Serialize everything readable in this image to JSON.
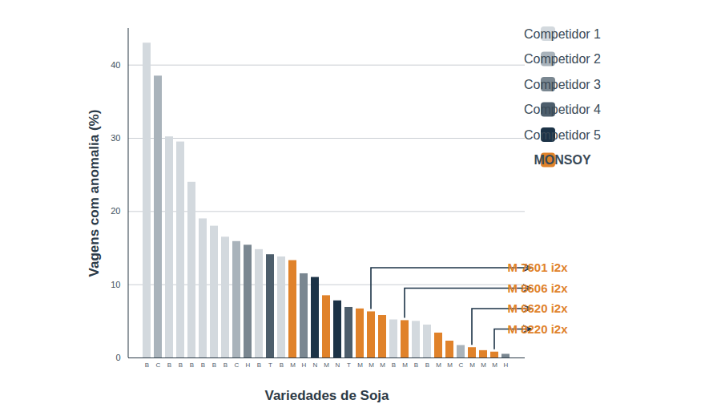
{
  "chart_data": {
    "type": "bar",
    "x_label": "Variedades de Soja",
    "y_label": "Vagens com anomalia (%)",
    "categories": [
      "B",
      "C",
      "B",
      "B",
      "B",
      "B",
      "B",
      "B",
      "C",
      "H",
      "B",
      "T",
      "B",
      "M",
      "H",
      "N",
      "M",
      "N",
      "T",
      "M",
      "M",
      "M",
      "B",
      "M",
      "B",
      "B",
      "M",
      "M",
      "C",
      "M",
      "M",
      "M",
      "H"
    ],
    "series": [
      {
        "name": "Competidor 1",
        "color": "#d3d9de",
        "values": [
          43,
          null,
          30.2,
          29.5,
          24,
          19,
          18,
          16.5,
          null,
          null,
          14.8,
          null,
          13.8,
          null,
          null,
          null,
          null,
          null,
          null,
          null,
          null,
          null,
          5.2,
          null,
          5.0,
          4.5,
          null,
          null,
          null,
          null,
          null,
          null,
          null
        ]
      },
      {
        "name": "Competidor 2",
        "color": "#a9b3bb",
        "values": [
          null,
          38.5,
          null,
          null,
          null,
          null,
          null,
          null,
          15.9,
          null,
          null,
          null,
          null,
          null,
          null,
          null,
          null,
          null,
          null,
          null,
          null,
          null,
          null,
          null,
          null,
          null,
          null,
          null,
          1.7,
          null,
          null,
          null,
          null
        ]
      },
      {
        "name": "Competidor 3",
        "color": "#7a8791",
        "values": [
          null,
          null,
          null,
          null,
          null,
          null,
          null,
          null,
          null,
          15.4,
          null,
          null,
          null,
          null,
          11.5,
          null,
          null,
          null,
          null,
          null,
          null,
          null,
          null,
          null,
          null,
          null,
          null,
          null,
          null,
          null,
          null,
          null,
          0.5
        ]
      },
      {
        "name": "Competidor 4",
        "color": "#4d5e6c",
        "values": [
          null,
          null,
          null,
          null,
          null,
          null,
          null,
          null,
          null,
          null,
          null,
          14.1,
          null,
          null,
          null,
          null,
          null,
          null,
          6.9,
          null,
          null,
          null,
          null,
          null,
          null,
          null,
          null,
          null,
          null,
          null,
          null,
          null,
          null
        ]
      },
      {
        "name": "Competidor 5",
        "color": "#1c3347",
        "values": [
          null,
          null,
          null,
          null,
          null,
          null,
          null,
          null,
          null,
          null,
          null,
          null,
          null,
          null,
          null,
          11,
          null,
          7.8,
          null,
          null,
          null,
          null,
          null,
          null,
          null,
          null,
          null,
          null,
          null,
          null,
          null,
          null,
          null
        ]
      },
      {
        "name": "MONSOY",
        "color": "#e0822a",
        "values": [
          null,
          null,
          null,
          null,
          null,
          null,
          null,
          null,
          null,
          null,
          null,
          null,
          null,
          13.3,
          null,
          null,
          8.5,
          null,
          null,
          6.7,
          6.3,
          5.8,
          null,
          5.1,
          null,
          null,
          3.4,
          2.3,
          null,
          1.4,
          1.0,
          0.8,
          null
        ]
      }
    ],
    "annotations": [
      {
        "text": "M 7601 i2x",
        "x": 20
      },
      {
        "text": "M 8606 i2x",
        "x": 23
      },
      {
        "text": "M 6620 i2x",
        "x": 29
      },
      {
        "text": "M 8220 i2x",
        "x": 31
      }
    ],
    "ylim": [
      0,
      45
    ],
    "yticks": [
      0,
      10,
      20,
      30,
      40
    ],
    "grid": true,
    "legend": "top-right"
  }
}
